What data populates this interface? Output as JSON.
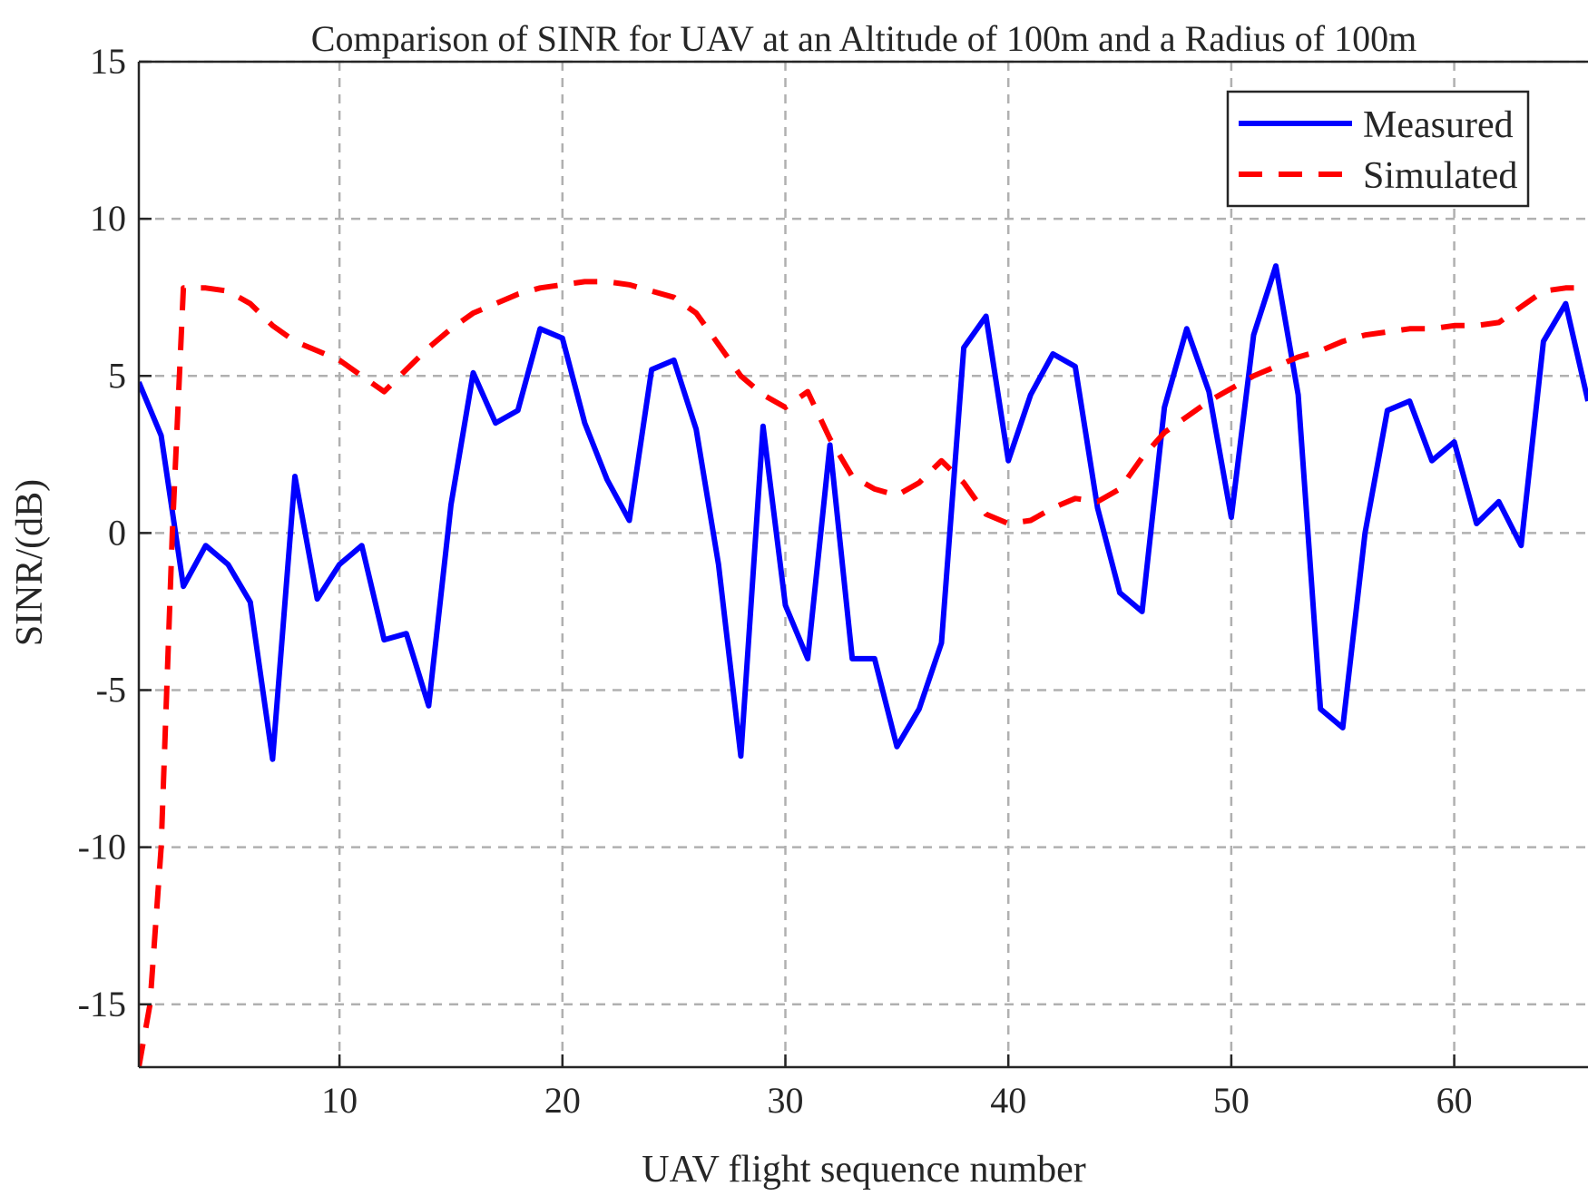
{
  "chart_data": {
    "type": "line",
    "title": "Comparison of SINR for UAV at an Altitude of 100m and a Radius of 100m",
    "xlabel": "UAV flight sequence number",
    "ylabel": "SINR/(dB)",
    "xlim": [
      1,
      66
    ],
    "ylim": [
      -17,
      15
    ],
    "xticks": [
      10,
      20,
      30,
      40,
      50,
      60
    ],
    "yticks": [
      -15,
      -10,
      -5,
      0,
      5,
      10,
      15
    ],
    "xtick_labels": [
      "10",
      "20",
      "30",
      "40",
      "50",
      "60"
    ],
    "ytick_labels": [
      "-15",
      "-10",
      "-5",
      "0",
      "5",
      "10",
      "15"
    ],
    "grid": true,
    "legend_position": "top-right",
    "series": [
      {
        "name": "Measured",
        "color": "#0000ff",
        "style": "solid",
        "x": [
          1,
          2,
          3,
          4,
          5,
          6,
          7,
          8,
          9,
          10,
          11,
          12,
          13,
          14,
          15,
          16,
          17,
          18,
          19,
          20,
          21,
          22,
          23,
          24,
          25,
          26,
          27,
          28,
          29,
          30,
          31,
          32,
          33,
          34,
          35,
          36,
          37,
          38,
          39,
          40,
          41,
          42,
          43,
          44,
          45,
          46,
          47,
          48,
          49,
          50,
          51,
          52,
          53,
          54,
          55,
          56,
          57,
          58,
          59,
          60,
          61,
          62,
          63,
          64,
          65,
          66
        ],
        "values": [
          4.8,
          3.1,
          -1.7,
          -0.4,
          -1.0,
          -2.2,
          -7.2,
          1.8,
          -2.1,
          -1.0,
          -0.4,
          -3.4,
          -3.2,
          -5.5,
          0.9,
          5.1,
          3.5,
          3.9,
          6.5,
          6.2,
          3.5,
          1.7,
          0.4,
          5.2,
          5.5,
          3.3,
          -1.0,
          -7.1,
          3.4,
          -2.3,
          -4.0,
          2.8,
          -4.0,
          -4.0,
          -6.8,
          -5.6,
          -3.5,
          5.9,
          6.9,
          2.3,
          4.4,
          5.7,
          5.3,
          0.8,
          -1.9,
          -2.5,
          4.0,
          6.5,
          4.5,
          0.5,
          6.3,
          8.5,
          4.4,
          -5.6,
          -6.2,
          0.0,
          3.9,
          4.2,
          2.3,
          2.9,
          0.3,
          1.0,
          -0.4,
          6.1,
          7.3,
          4.2
        ]
      },
      {
        "name": "Simulated",
        "color": "#ff0000",
        "style": "dashed",
        "x": [
          1,
          1.5,
          2,
          2.5,
          3,
          4,
          5,
          6,
          7,
          8,
          9,
          10,
          11,
          12,
          13,
          14,
          15,
          16,
          17,
          18,
          19,
          20,
          21,
          22,
          23,
          24,
          25,
          26,
          27,
          28,
          29,
          30,
          31,
          32,
          33,
          34,
          35,
          36,
          37,
          38,
          39,
          40,
          41,
          42,
          43,
          44,
          45,
          46,
          47,
          48,
          49,
          50,
          51,
          52,
          53,
          54,
          55,
          56,
          57,
          58,
          59,
          60,
          61,
          62,
          63,
          64,
          65,
          66
        ],
        "values": [
          -17.0,
          -15.0,
          -10.0,
          0.0,
          7.8,
          7.8,
          7.7,
          7.3,
          6.6,
          6.1,
          5.8,
          5.5,
          5.0,
          4.5,
          5.2,
          5.9,
          6.5,
          7.0,
          7.3,
          7.6,
          7.8,
          7.9,
          8.0,
          8.0,
          7.9,
          7.7,
          7.5,
          7.0,
          6.0,
          5.0,
          4.4,
          4.0,
          4.5,
          3.0,
          1.8,
          1.4,
          1.2,
          1.6,
          2.3,
          1.6,
          0.6,
          0.3,
          0.4,
          0.8,
          1.1,
          1.0,
          1.4,
          2.4,
          3.2,
          3.7,
          4.2,
          4.6,
          5.0,
          5.3,
          5.6,
          5.8,
          6.1,
          6.3,
          6.4,
          6.5,
          6.5,
          6.6,
          6.6,
          6.7,
          7.2,
          7.7,
          7.8,
          7.8
        ]
      }
    ]
  }
}
